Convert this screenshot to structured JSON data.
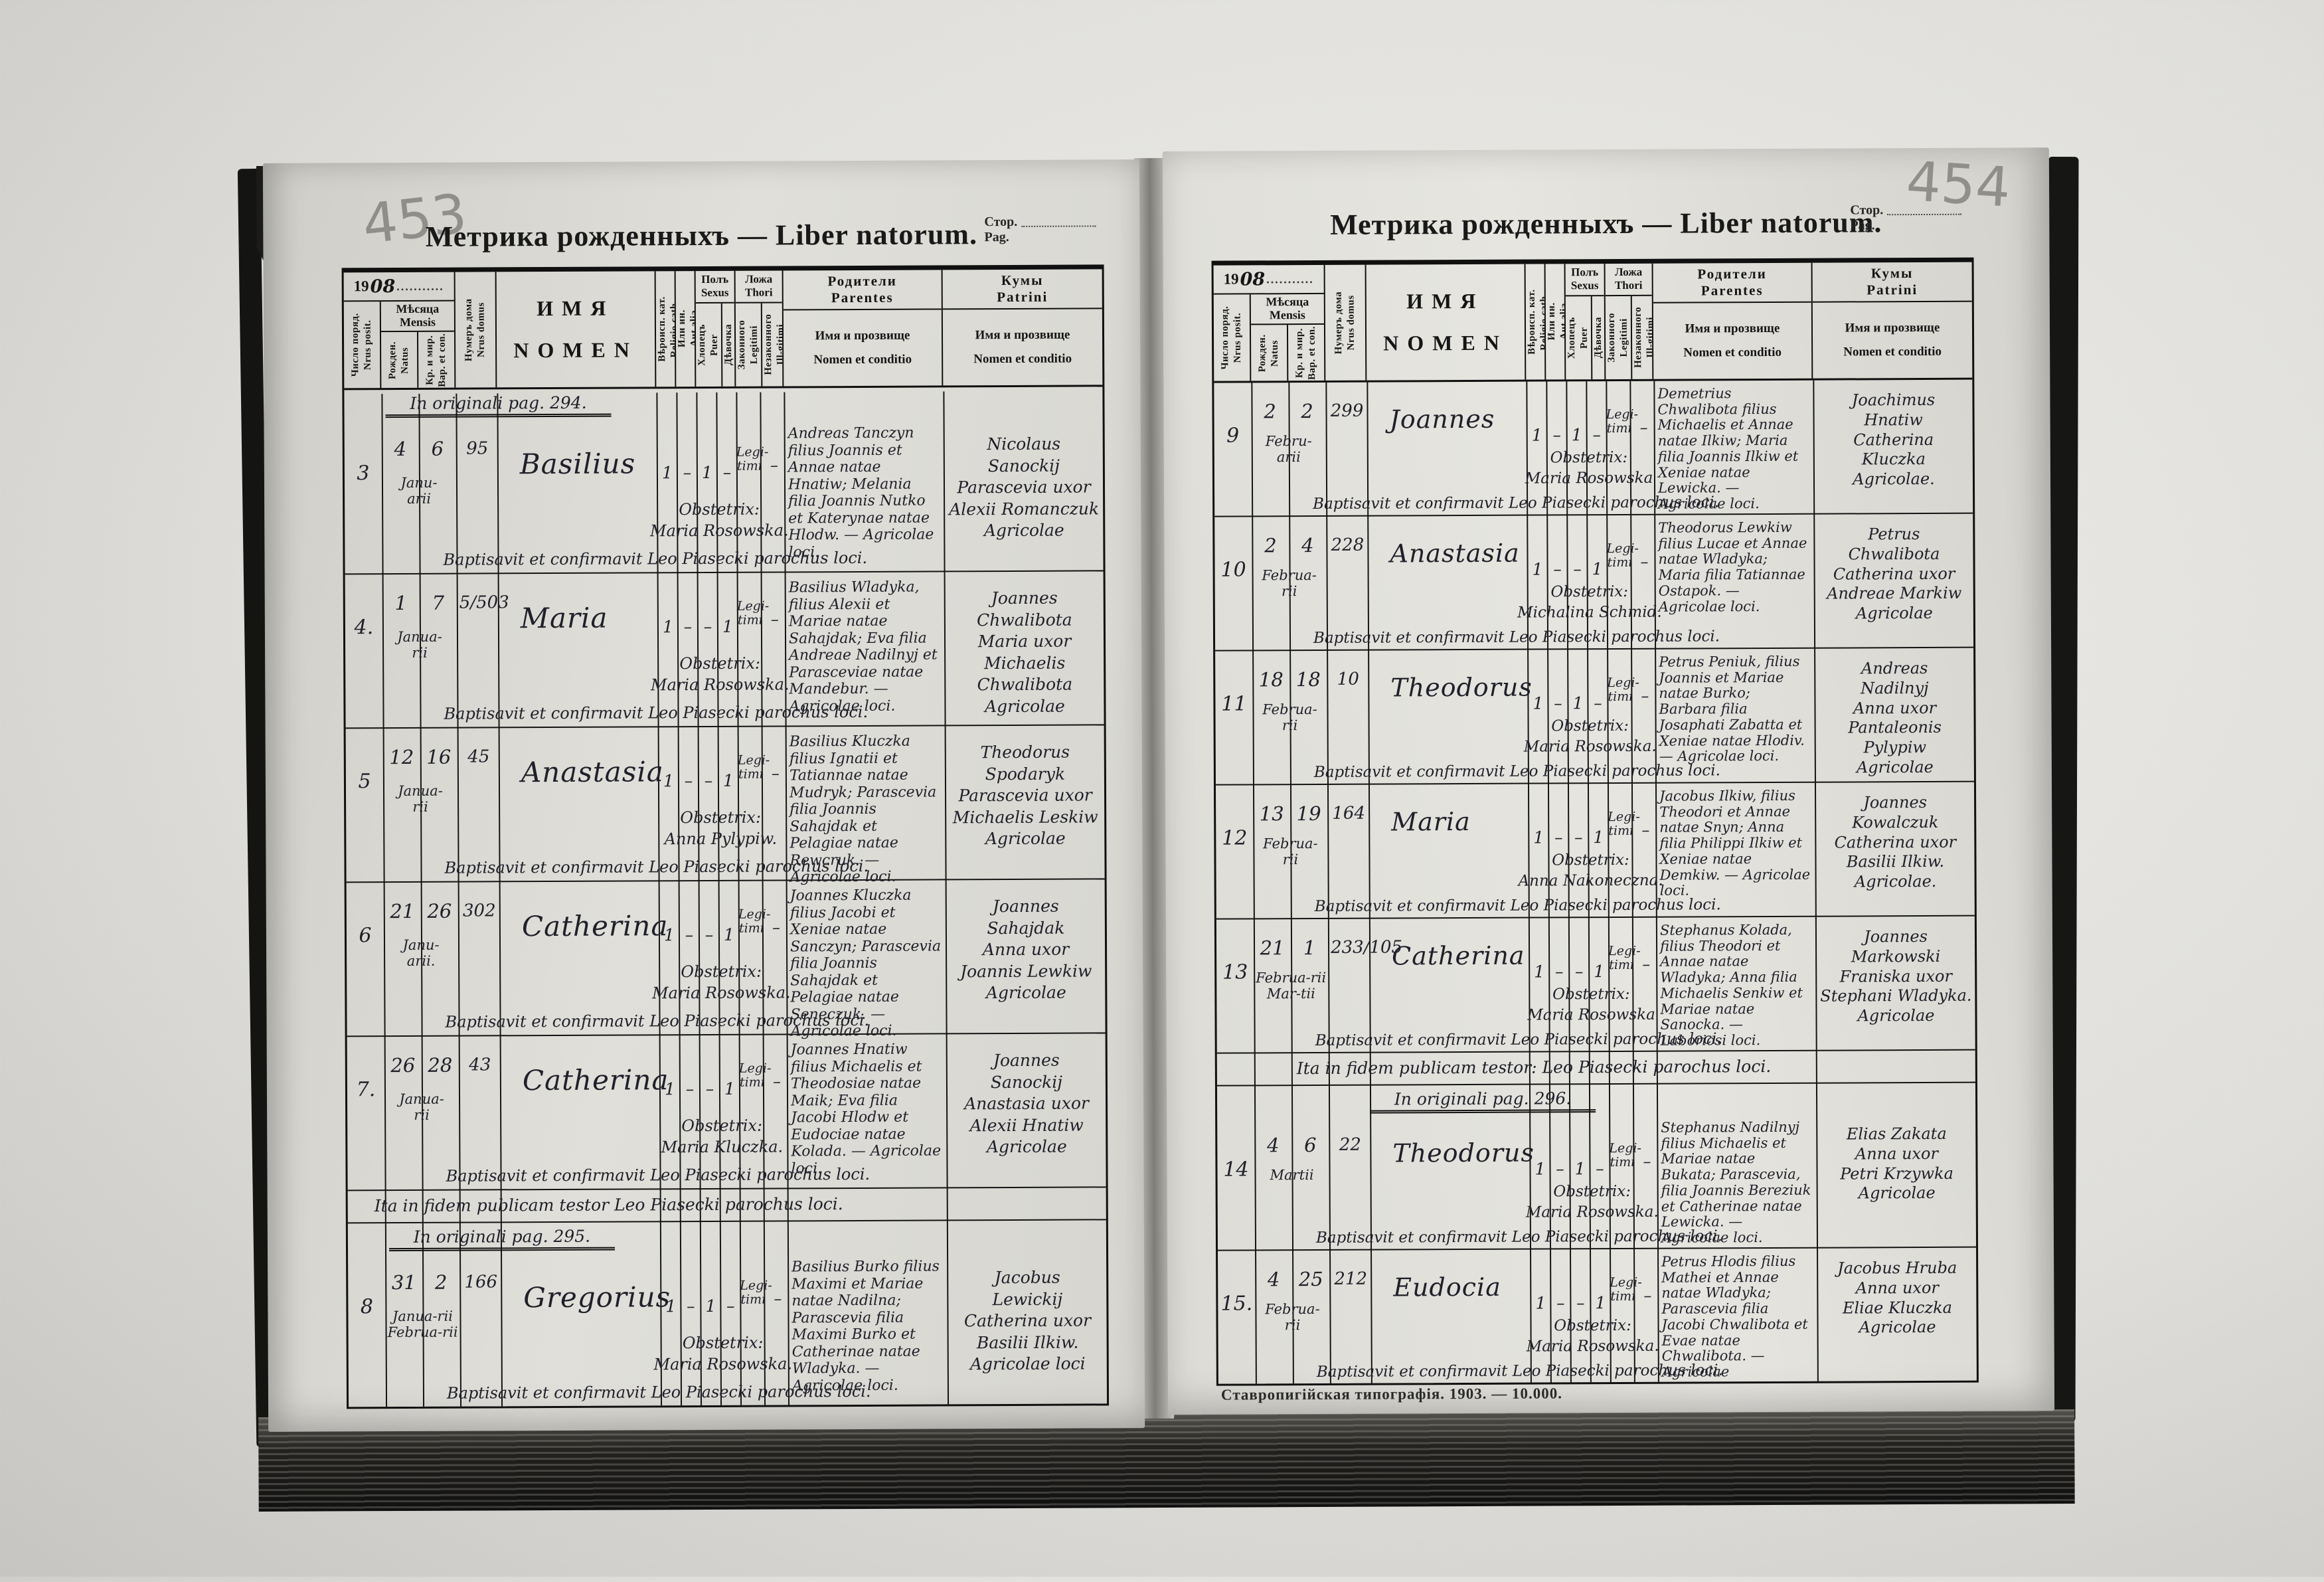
{
  "meta": {
    "title": "Метрика рожденныхъ — Liber natorum.",
    "stor": "Стор.",
    "pag": "Pag.",
    "year_printed": "19",
    "year_hand": "08",
    "year_dots": "..........."
  },
  "cols": {
    "nr": "Число поряд.\nNrus posit.",
    "mensis": "Мѣсяца\nMensis",
    "natus": "Рожден.\nNatus",
    "bap": "Кр. и мир.\nBap. et con.",
    "house": "Нумеръ дома\nNrus domus",
    "nomen_cyr": "ИМЯ",
    "nomen_lat": "NOMEN",
    "religio": "Вѣроисп. кат.\nReligio cath.",
    "aut": "Или ин.\nAut alia",
    "sexus": "Полъ\nSexus",
    "puer": "Хлопецъ\nPuer",
    "puella": "Дѣвочка\nPuella",
    "thori": "Ложа\nThori",
    "leg": "Законного\nLegitimi",
    "illeg": "Незаконного\nIll-gitimi",
    "parentes": "Родители\nParentes",
    "patrini": "Кумы\nPatrini",
    "name_sub": "Имя и прозвище\nNomen et conditio"
  },
  "left": {
    "pencil": "453",
    "records": [
      {
        "pag_note": "In originali pag. 294.",
        "testor_note": "",
        "nr": "3",
        "born": "4",
        "bapt": "6",
        "month": "Janu-\narii",
        "house": "95",
        "name": "Basilius",
        "religio": "1",
        "aut": "–",
        "puer": "1",
        "puella": "–",
        "thori": "Legi-\ntimi",
        "illeg": "–",
        "obstetrix": "Obstetrix:\nMaria Rosowska.",
        "parents": "Andreas Tanczyn filius Joannis et Annae natae Hnatiw; Melania filia Joannis Nutko et Katerynae natae Hlodw. — Agricolae loci.",
        "patrini": "Nicolaus\nSanockij\nParascevia uxor\nAlexii Romanczuk\nAgricolae",
        "baptline": "Baptisavit et confirmavit Leo Piasecki parochus loci."
      },
      {
        "pag_note": "",
        "testor_note": "",
        "nr": "4.",
        "born": "1",
        "bapt": "7",
        "month": "Janua-\nrii",
        "house": "5/503",
        "name": "Maria",
        "religio": "1",
        "aut": "–",
        "puer": "–",
        "puella": "1",
        "thori": "Legi-\ntimi",
        "illeg": "–",
        "obstetrix": "Obstetrix:\nMaria Rosowska.",
        "parents": "Basilius Wladyka, filius Alexii et Mariae natae Sahajdak; Eva filia Andreae Nadilnyj et Parasceviae natae Mandebur. — Agricolae loci.",
        "patrini": "Joannes\nChwalibota\nMaria uxor\nMichaelis Chwalibota\nAgricolae",
        "baptline": "Baptisavit et confirmavit Leo Piasecki parochus loci."
      },
      {
        "pag_note": "",
        "testor_note": "",
        "nr": "5",
        "born": "12",
        "bapt": "16",
        "month": "Janua-\nrii",
        "house": "45",
        "name": "Anastasia",
        "religio": "1",
        "aut": "–",
        "puer": "–",
        "puella": "1",
        "thori": "Legi-\ntimi",
        "illeg": "–",
        "obstetrix": "Obstetrix:\nAnna Pylypiw.",
        "parents": "Basilius Kluczka filius Ignatii et Tatiannae natae Mudryk; Parascevia filia Joannis Sahajdak et Pelagiae natae Rewcruk. — Agricolae loci.",
        "patrini": "Theodorus\nSpodaryk\nParascevia uxor\nMichaelis Leskiw\nAgricolae",
        "baptline": "Baptisavit et confirmavit Leo Piasecki parochus loci."
      },
      {
        "pag_note": "",
        "testor_note": "",
        "nr": "6",
        "born": "21",
        "bapt": "26",
        "month": "Janu-\narii.",
        "house": "302",
        "name": "Catherina",
        "religio": "1",
        "aut": "–",
        "puer": "–",
        "puella": "1",
        "thori": "Legi-\ntimi",
        "illeg": "–",
        "obstetrix": "Obstetrix:\nMaria Rosowska.",
        "parents": "Joannes Kluczka filius Jacobi et Xeniae natae Sanczyn; Parascevia filia Joannis Sahajdak et Pelagiae natae Seneczuk. — Agricolae loci.",
        "patrini": "Joannes\nSahajdak\nAnna uxor\nJoannis Lewkiw\nAgricolae",
        "baptline": "Baptisavit et confirmavit Leo Piasecki parochus loci."
      },
      {
        "pag_note": "",
        "testor_note": "",
        "nr": "7.",
        "born": "26",
        "bapt": "28",
        "month": "Janua-\nrii",
        "house": "43",
        "name": "Catherina",
        "religio": "1",
        "aut": "–",
        "puer": "–",
        "puella": "1",
        "thori": "Legi-\ntimi",
        "illeg": "–",
        "obstetrix": "Obstetrix:\nMaria Kluczka.",
        "parents": "Joannes Hnatiw filius Michaelis et Theodosiae natae Maik; Eva filia Jacobi Hlodw et Eudociae natae Kolada. — Agricolae loci.",
        "patrini": "Joannes\nSanockij\nAnastasia uxor\nAlexii Hnatiw\nAgricolae",
        "baptline": "Baptisavit et confirmavit Leo Piasecki parochus loci."
      },
      {
        "pag_note": "In originali pag. 295.",
        "testor_note": "Ita in fidem publicam testor Leo Piasecki parochus loci.",
        "nr": "8",
        "born": "31",
        "bapt": "2",
        "month": "Janua-rii\nFebrua-rii",
        "house": "166",
        "name": "Gregorius",
        "religio": "1",
        "aut": "–",
        "puer": "1",
        "puella": "–",
        "thori": "Legi-\ntimi",
        "illeg": "–",
        "obstetrix": "Obstetrix:\nMaria Rosowska.",
        "parents": "Basilius Burko filius Maximi et Mariae natae Nadilna; Parascevia filia Maximi Burko et Catherinae natae Wladyka. — Agricolae loci.",
        "patrini": "Jacobus\nLewickij\nCatherina uxor\nBasilii Ilkiw.\nAgricolae loci",
        "baptline": "Baptisavit et confirmavit Leo Piasecki parochus loci."
      }
    ]
  },
  "right": {
    "pencil": "454",
    "footer": "Ставропигійская типографія. 1903. — 10.000.",
    "records": [
      {
        "pag_note": "",
        "testor_note": "",
        "nr": "9",
        "born": "2",
        "bapt": "2",
        "month": "Febru-\narii",
        "house": "299",
        "name": "Joannes",
        "religio": "1",
        "aut": "–",
        "puer": "1",
        "puella": "–",
        "thori": "Legi-\ntimi",
        "illeg": "–",
        "obstetrix": "Obstetrix:\nMaria Rosowska",
        "parents": "Demetrius Chwalibota filius Michaelis et Annae natae Ilkiw; Maria filia Joannis Ilkiw et Xeniae natae Lewicka. — Agricolae loci.",
        "patrini": "Joachimus\nHnatiw\nCatherina\nKluczka\nAgricolae.",
        "baptline": "Baptisavit et confirmavit Leo Piasecki parochus loci."
      },
      {
        "pag_note": "",
        "testor_note": "",
        "nr": "10",
        "born": "2",
        "bapt": "4",
        "month": "Februa-\nrii",
        "house": "228",
        "name": "Anastasia",
        "religio": "1",
        "aut": "–",
        "puer": "–",
        "puella": "1",
        "thori": "Legi-\ntimi",
        "illeg": "–",
        "obstetrix": "Obstetrix:\nMichalina Schmid.",
        "parents": "Theodorus Lewkiw filius Lucae et Annae natae Wladyka; Maria filia Tatiannae Ostapok. — Agricolae loci.",
        "patrini": "Petrus\nChwalibota\nCatherina uxor\nAndreae Markiw\nAgricolae",
        "baptline": "Baptisavit et confirmavit Leo Piasecki parochus loci."
      },
      {
        "pag_note": "",
        "testor_note": "",
        "nr": "11",
        "born": "18",
        "bapt": "18",
        "month": "Februa-\nrii",
        "house": "10",
        "name": "Theodorus",
        "religio": "1",
        "aut": "–",
        "puer": "1",
        "puella": "–",
        "thori": "Legi-\ntimi",
        "illeg": "–",
        "obstetrix": "Obstetrix:\nMaria Rosowska.",
        "parents": "Petrus Peniuk, filius Joannis et Mariae natae Burko; Barbara filia Josaphati Zabatta et Xeniae natae Hlodiv. — Agricolae loci.",
        "patrini": "Andreas\nNadilnyj\nAnna uxor\nPantaleonis Pylypiw\nAgricolae",
        "baptline": "Baptisavit et confirmavit Leo Piasecki parochus loci."
      },
      {
        "pag_note": "",
        "testor_note": "",
        "nr": "12",
        "born": "13",
        "bapt": "19",
        "month": "Februa-\nrii",
        "house": "164",
        "name": "Maria",
        "religio": "1",
        "aut": "–",
        "puer": "–",
        "puella": "1",
        "thori": "Legi-\ntimi",
        "illeg": "–",
        "obstetrix": "Obstetrix:\nAnna Nakoneczna.",
        "parents": "Jacobus Ilkiw, filius Theodori et Annae natae Snyn; Anna filia Philippi Ilkiw et Xeniae natae Demkiw. — Agricolae loci.",
        "patrini": "Joannes\nKowalczuk\nCatherina uxor\nBasilii Ilkiw.\nAgricolae.",
        "baptline": "Baptisavit et confirmavit Leo Piasecki parochus loci."
      },
      {
        "pag_note": "",
        "testor_note": "",
        "nr": "13",
        "born": "21",
        "bapt": "1",
        "month": "Februa-rii\nMar-tii",
        "house": "233/105",
        "name": "Catherina",
        "religio": "1",
        "aut": "–",
        "puer": "–",
        "puella": "1",
        "thori": "Legi-\ntimi",
        "illeg": "–",
        "obstetrix": "Obstetrix:\nMaria Rosowska",
        "parents": "Stephanus Kolada, filius Theodori et Annae natae Wladyka; Anna filia Michaelis Senkiw et Mariae natae Sanocka. — Laboriosi loci.",
        "patrini": "Joannes\nMarkowski\nFraniska uxor\nStephani Wladyka.\nAgricolae",
        "baptline": "Baptisavit et confirmavit Leo Piasecki parochus loci."
      },
      {
        "pag_note": "In originali pag. 296.",
        "testor_note": "Ita in fidem publicam testor: Leo Piasecki parochus loci.",
        "nr": "14",
        "born": "4",
        "bapt": "6",
        "month": "Martii",
        "house": "22",
        "name": "Theodorus",
        "religio": "1",
        "aut": "–",
        "puer": "1",
        "puella": "–",
        "thori": "Legi-\ntimi",
        "illeg": "–",
        "obstetrix": "Obstetrix:\nMaria Rosowska.",
        "parents": "Stephanus Nadilnyj filius Michaelis et Mariae natae Bukata; Parascevia, filia Joannis Bereziuk et Catherinae natae Lewicka. — Agricolae loci.",
        "patrini": "Elias Zakata\nAnna uxor\nPetri Krzywka\nAgricolae",
        "baptline": "Baptisavit et confirmavit Leo Piasecki parochus loci."
      },
      {
        "pag_note": "",
        "testor_note": "",
        "nr": "15.",
        "born": "4",
        "bapt": "25",
        "month": "Februa-\nrii",
        "house": "212",
        "name": "Eudocia",
        "religio": "1",
        "aut": "–",
        "puer": "–",
        "puella": "1",
        "thori": "Legi-\ntimi",
        "illeg": "–",
        "obstetrix": "Obstetrix:\nMaria Rosowska.",
        "parents": "Petrus Hlodis filius Mathei et Annae natae Wladyka; Parascevia filia Jacobi Chwalibota et Evae natae Chwalibota. — Agricolae",
        "patrini": "Jacobus Hruba\nAnna uxor\nEliae Kluczka\nAgricolae",
        "baptline": "Baptisavit et confirmavit Leo Piasecki parochus loci."
      }
    ]
  }
}
